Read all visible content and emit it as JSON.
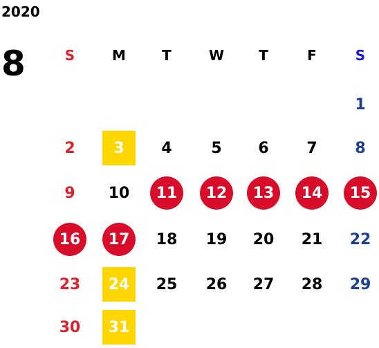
{
  "year": "2020",
  "month": "8",
  "weekday_headers": [
    "S",
    "M",
    "T",
    "W",
    "T",
    "F",
    "S"
  ],
  "colors": {
    "sunday_text": "#d9232d",
    "saturday_text": "#1f3f8f",
    "saturday_header": "#1a1ad4",
    "holiday_circle": "#d90c29",
    "highlight_square": "#ffd600"
  },
  "days": [
    {
      "label": "1",
      "row": 0,
      "col": 6,
      "style": "sat"
    },
    {
      "label": "2",
      "row": 1,
      "col": 0,
      "style": "sun"
    },
    {
      "label": "3",
      "row": 1,
      "col": 1,
      "style": "yellow"
    },
    {
      "label": "4",
      "row": 1,
      "col": 2,
      "style": "normal"
    },
    {
      "label": "5",
      "row": 1,
      "col": 3,
      "style": "normal"
    },
    {
      "label": "6",
      "row": 1,
      "col": 4,
      "style": "normal"
    },
    {
      "label": "7",
      "row": 1,
      "col": 5,
      "style": "normal"
    },
    {
      "label": "8",
      "row": 1,
      "col": 6,
      "style": "sat"
    },
    {
      "label": "9",
      "row": 2,
      "col": 0,
      "style": "sun"
    },
    {
      "label": "10",
      "row": 2,
      "col": 1,
      "style": "normal"
    },
    {
      "label": "11",
      "row": 2,
      "col": 2,
      "style": "circle"
    },
    {
      "label": "12",
      "row": 2,
      "col": 3,
      "style": "circle"
    },
    {
      "label": "13",
      "row": 2,
      "col": 4,
      "style": "circle"
    },
    {
      "label": "14",
      "row": 2,
      "col": 5,
      "style": "circle"
    },
    {
      "label": "15",
      "row": 2,
      "col": 6,
      "style": "circle"
    },
    {
      "label": "16",
      "row": 3,
      "col": 0,
      "style": "circle"
    },
    {
      "label": "17",
      "row": 3,
      "col": 1,
      "style": "circle"
    },
    {
      "label": "18",
      "row": 3,
      "col": 2,
      "style": "normal"
    },
    {
      "label": "19",
      "row": 3,
      "col": 3,
      "style": "normal"
    },
    {
      "label": "20",
      "row": 3,
      "col": 4,
      "style": "normal"
    },
    {
      "label": "21",
      "row": 3,
      "col": 5,
      "style": "normal"
    },
    {
      "label": "22",
      "row": 3,
      "col": 6,
      "style": "sat"
    },
    {
      "label": "23",
      "row": 4,
      "col": 0,
      "style": "sun"
    },
    {
      "label": "24",
      "row": 4,
      "col": 1,
      "style": "yellow"
    },
    {
      "label": "25",
      "row": 4,
      "col": 2,
      "style": "normal"
    },
    {
      "label": "26",
      "row": 4,
      "col": 3,
      "style": "normal"
    },
    {
      "label": "27",
      "row": 4,
      "col": 4,
      "style": "normal"
    },
    {
      "label": "28",
      "row": 4,
      "col": 5,
      "style": "normal"
    },
    {
      "label": "29",
      "row": 4,
      "col": 6,
      "style": "sat"
    },
    {
      "label": "30",
      "row": 5,
      "col": 0,
      "style": "sun"
    },
    {
      "label": "31",
      "row": 5,
      "col": 1,
      "style": "yellow"
    }
  ]
}
